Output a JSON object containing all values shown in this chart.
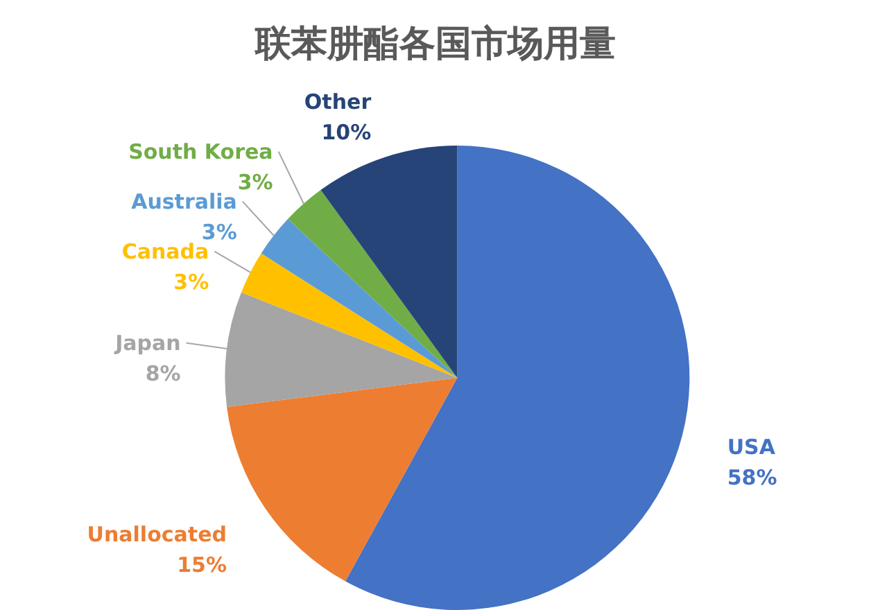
{
  "chart_data": {
    "type": "pie",
    "title": "联苯肼酯各国市场用量",
    "categories": [
      "USA",
      "Unallocated",
      "Japan",
      "Canada",
      "Australia",
      "South Korea",
      "Other"
    ],
    "values": [
      58,
      15,
      8,
      3,
      3,
      3,
      10
    ],
    "value_labels": [
      "58%",
      "15%",
      "8%",
      "3%",
      "3%",
      "3%",
      "10%"
    ],
    "colors": [
      "#4472c4",
      "#ed7d31",
      "#a5a5a5",
      "#ffc000",
      "#5b9bd5",
      "#70ad47",
      "#264478"
    ]
  }
}
